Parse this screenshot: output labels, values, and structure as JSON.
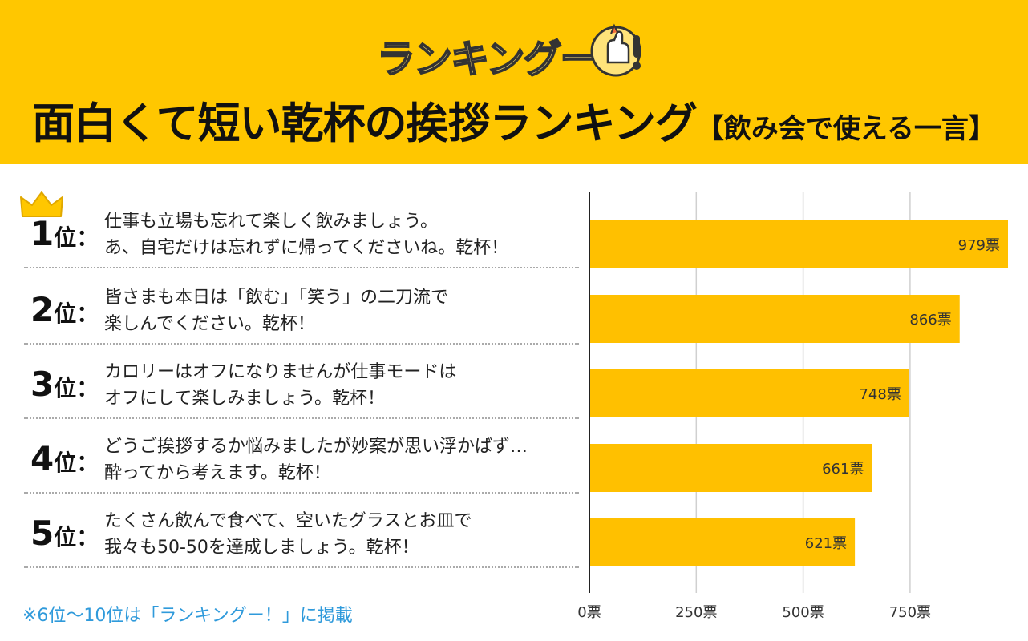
{
  "header": {
    "logo_text": "ランキングー!",
    "title_main": "面白くて短い乾杯の挨拶ランキング",
    "title_sub": "【飲み会で使える一言】",
    "bg_color": "#FFC700"
  },
  "rankings": [
    {
      "rank": "1",
      "unit": "位：",
      "line1": "仕事も立場も忘れて楽しく飲みましょう。",
      "line2": "あ、自宅だけは忘れずに帰ってくださいね。乾杯！"
    },
    {
      "rank": "2",
      "unit": "位：",
      "line1": "皆さまも本日は「飲む」「笑う」の二刀流で",
      "line2": "楽しんでください。乾杯！"
    },
    {
      "rank": "3",
      "unit": "位：",
      "line1": "カロリーはオフになりませんが仕事モードは",
      "line2": "オフにして楽しみましょう。乾杯！"
    },
    {
      "rank": "4",
      "unit": "位：",
      "line1": "どうご挨拶するか悩みましたが妙案が思い浮かばず…",
      "line2": "酔ってから考えます。乾杯！"
    },
    {
      "rank": "5",
      "unit": "位：",
      "line1": "たくさん飲んで食べて、空いたグラスとお皿で",
      "line2": "我々も50-50を達成しましょう。乾杯！"
    }
  ],
  "footnote": "※6位〜10位は「ランキングー！」に掲載",
  "chart_data": {
    "type": "bar",
    "orientation": "horizontal",
    "categories": [
      "1位",
      "2位",
      "3位",
      "4位",
      "5位"
    ],
    "values": [
      979,
      866,
      748,
      661,
      621
    ],
    "value_labels": [
      "979票",
      "866票",
      "748票",
      "661票",
      "621票"
    ],
    "xlim": [
      0,
      979
    ],
    "ticks": [
      0,
      250,
      500,
      750
    ],
    "tick_labels": [
      "0票",
      "250票",
      "500票",
      "750票"
    ],
    "grid": true,
    "bar_color": "#FFC000"
  }
}
